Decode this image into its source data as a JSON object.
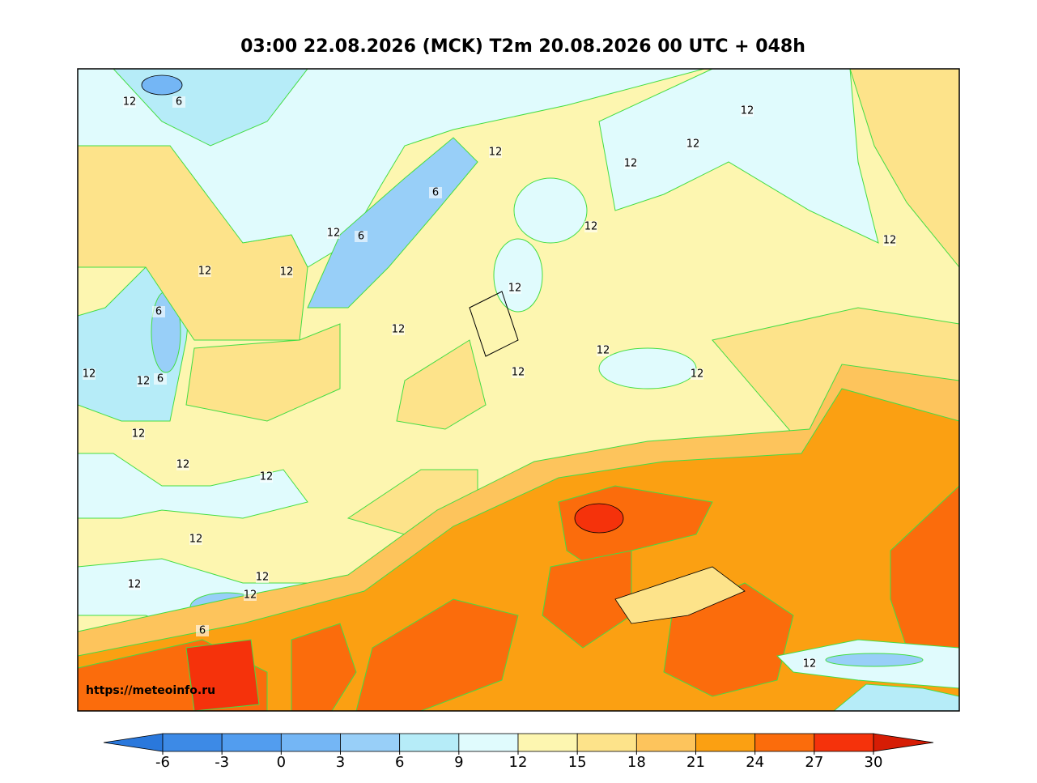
{
  "title": "03:00 22.08.2026 (MCK) T2m 20.08.2026 00 UTC + 048h",
  "watermark": "https://meteoinfo.ru",
  "contour_labels": [
    12,
    6,
    12,
    12,
    12,
    12,
    6,
    12,
    12,
    6,
    12,
    12,
    12,
    6,
    12,
    12,
    12,
    12,
    12,
    6,
    12,
    12,
    12,
    12,
    12,
    12,
    12,
    12,
    12,
    6,
    12
  ],
  "colorbar": {
    "ticks": [
      -6,
      -3,
      0,
      3,
      6,
      9,
      12,
      15,
      18,
      21,
      24,
      27,
      30
    ],
    "under_color": "#2a78dc",
    "colors": [
      "#3d8ae6",
      "#529def",
      "#74b6f5",
      "#98cff8",
      "#b6ecf8",
      "#e0fbfd",
      "#fdf6b0",
      "#fde38a",
      "#fdc45c",
      "#fba012",
      "#fb6c0c",
      "#f5320b"
    ],
    "over_color": "#d61d05"
  }
}
